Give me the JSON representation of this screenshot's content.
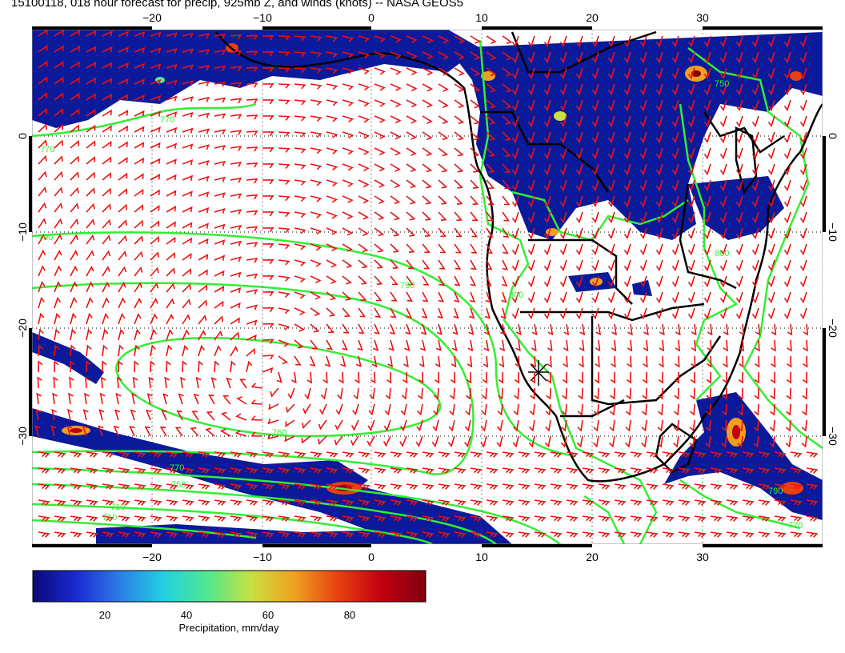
{
  "title": "15100118, 018 hour forecast for precip, 925mb Z, and winds (knots) -- NASA GEOS5",
  "x_ticks": [
    "−20",
    "−10",
    "0",
    "10",
    "20",
    "30"
  ],
  "y_ticks": [
    "0",
    "−10",
    "−20",
    "−30"
  ],
  "colorbar": {
    "ticks": [
      "20",
      "40",
      "60",
      "80"
    ],
    "label": "Precipitation, mm/day",
    "colors": [
      "#0a0a78",
      "#1a2ad0",
      "#2c7ee8",
      "#22d0e0",
      "#50e890",
      "#c8e040",
      "#f0a020",
      "#e84010",
      "#c00010",
      "#800010"
    ]
  },
  "contour_labels": [
    "770",
    "770",
    "790",
    "790",
    "800",
    "760",
    "770",
    "750",
    "710",
    "710",
    "800",
    "750",
    "790",
    "770"
  ],
  "colors": {
    "contour": "#33ee33",
    "barb": "#ee1111",
    "coast": "#000000",
    "precip": "#0b1a9a"
  }
}
